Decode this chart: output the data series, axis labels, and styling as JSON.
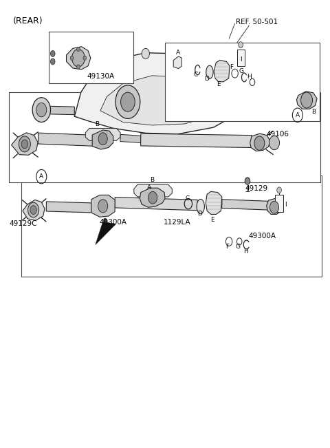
{
  "background_color": "#ffffff",
  "color_main": "#222222",
  "color_gray1": "#cccccc",
  "color_gray2": "#dddddd",
  "color_gray3": "#e0e0e0",
  "color_gray4": "#bbbbbb",
  "color_gray5": "#d0d0d0",
  "color_gray6": "#e8e8e8",
  "color_black": "#111111",
  "color_dark": "#444444",
  "labels": {
    "rear": "(REAR)",
    "ref": "REF. 50-501",
    "49129": "49129",
    "49300A_1": "49300A",
    "49300A_2": "49300A",
    "1129LA": "1129LA",
    "49129C": "49129C",
    "49130A": "49130A",
    "49106": "49106"
  },
  "part_letters_top": [
    "A",
    "B",
    "C",
    "D",
    "E",
    "F",
    "G",
    "H",
    "I"
  ],
  "part_letters_bot": [
    "A",
    "B",
    "C",
    "D",
    "E",
    "F",
    "G",
    "H",
    "I"
  ]
}
